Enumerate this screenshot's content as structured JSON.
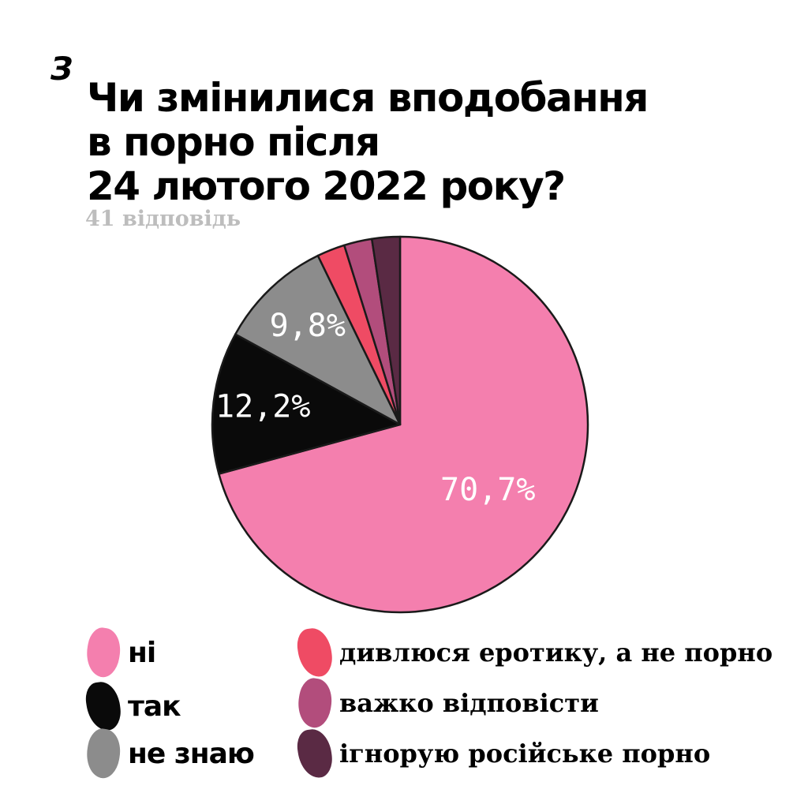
{
  "logo": "З",
  "title_lines": [
    "Чи змінилися вподобання",
    "в порно після",
    "24 лютого 2022 року?"
  ],
  "subtitle": "41 відповідь",
  "chart_data": {
    "type": "pie",
    "title": "Чи змінилися вподобання в порно після 24 лютого 2022 року?",
    "total_responses": 41,
    "start_angle_deg": 0,
    "direction": "clockwise",
    "slices": [
      {
        "label": "ні",
        "value": 70.7,
        "display": "70,7%",
        "color": "#f47fae"
      },
      {
        "label": "так",
        "value": 12.2,
        "display": "12,2%",
        "color": "#0a0a0a"
      },
      {
        "label": "не знаю",
        "value": 9.8,
        "display": "9,8%",
        "color": "#8c8c8c"
      },
      {
        "label": "дивлюся еротику, а не порно",
        "value": 2.4,
        "display": "",
        "color": "#ef4b64"
      },
      {
        "label": "важко відповісти",
        "value": 2.4,
        "display": "",
        "color": "#b24d7c"
      },
      {
        "label": "ігнорую російське порно",
        "value": 2.4,
        "display": "",
        "color": "#5a2a44"
      }
    ]
  },
  "legend": [
    {
      "label": "ні",
      "color": "#f47fae",
      "style": "a"
    },
    {
      "label": "так",
      "color": "#0a0a0a",
      "style": "a"
    },
    {
      "label": "не знаю",
      "color": "#8c8c8c",
      "style": "a"
    },
    {
      "label": "дивлюся еротику, а не порно",
      "color": "#ef4b64",
      "style": "b"
    },
    {
      "label": "важко відповісти",
      "color": "#b24d7c",
      "style": "b"
    },
    {
      "label": "ігнорую російське порно",
      "color": "#5a2a44",
      "style": "b"
    }
  ]
}
